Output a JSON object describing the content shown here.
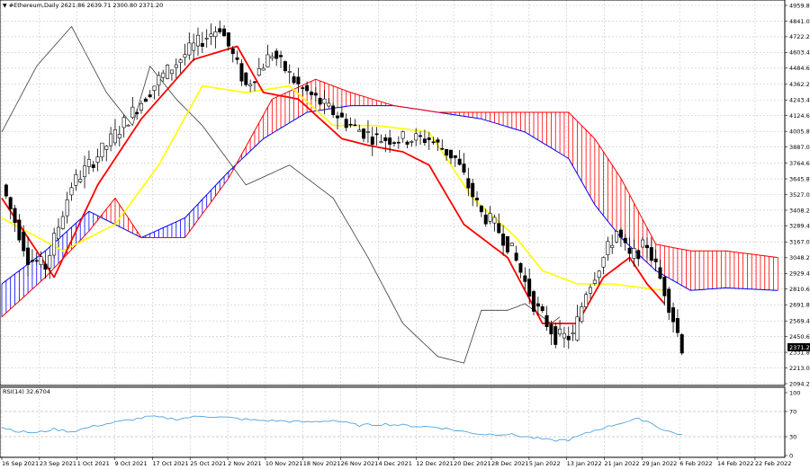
{
  "header": {
    "symbol_label": "#Ethereum,Daily",
    "ohlc_label": "2621.86 2639.71 2300.80 2371.20"
  },
  "rsi_panel": {
    "label": "RSI(14) 32.6704"
  },
  "current_price": "2371.20",
  "colors": {
    "background": "#ffffff",
    "grid": "#c8c8c8",
    "candle": "#000000",
    "tenkan": "#ff0000",
    "kijun": "#ffff00",
    "chikou": "#3c3c3c",
    "kumo_bull": "#0000ff",
    "kumo_bear": "#ff0000",
    "rsi_line": "#4fa3e0",
    "price_badge": "#000000"
  },
  "chart_data": [
    {
      "type": "candlestick",
      "title": "#Ethereum,Daily",
      "indicators": [
        "Ichimoku Kinko Hyo"
      ],
      "y_ticks": [
        "4959.80",
        "4841.00",
        "4722.20",
        "4603.40",
        "4484.60",
        "4362.20",
        "4243.40",
        "4124.60",
        "4005.80",
        "3887.00",
        "3764.60",
        "3645.80",
        "3527.00",
        "3408.20",
        "3289.40",
        "3167.00",
        "3048.20",
        "2929.40",
        "2810.60",
        "2691.80",
        "2569.40",
        "2450.60",
        "2331.80",
        "2213.00",
        "2094.20"
      ],
      "ylim": [
        2094.2,
        4959.8
      ],
      "x_ticks": [
        "16 Sep 2021",
        "23 Sep 2021",
        "1 Oct 2021",
        "9 Oct 2021",
        "17 Oct 2021",
        "25 Oct 2021",
        "2 Nov 2021",
        "10 Nov 2021",
        "18 Nov 2021",
        "26 Nov 2021",
        "4 Dec 2021",
        "12 Dec 2021",
        "20 Dec 2021",
        "28 Dec 2021",
        "5 Jan 2022",
        "13 Jan 2022",
        "21 Jan 2022",
        "29 Jan 2022",
        "6 Feb 2022",
        "14 Feb 2022",
        "22 Feb 2022"
      ],
      "last_close": 2371.2,
      "price_key": [
        [
          0,
          3600
        ],
        [
          6,
          3050
        ],
        [
          10,
          2980
        ],
        [
          16,
          3600
        ],
        [
          24,
          3900
        ],
        [
          30,
          4150
        ],
        [
          36,
          4400
        ],
        [
          44,
          4650
        ],
        [
          50,
          4800
        ],
        [
          56,
          4350
        ],
        [
          62,
          4600
        ],
        [
          68,
          4350
        ],
        [
          74,
          4200
        ],
        [
          80,
          4050
        ],
        [
          86,
          3950
        ],
        [
          92,
          3950
        ],
        [
          98,
          3950
        ],
        [
          104,
          3800
        ],
        [
          110,
          3380
        ],
        [
          113,
          3300
        ],
        [
          117,
          3100
        ],
        [
          122,
          2700
        ],
        [
          127,
          2450
        ],
        [
          131,
          2450
        ],
        [
          134,
          2800
        ],
        [
          138,
          3050
        ],
        [
          141,
          3250
        ],
        [
          144,
          3050
        ],
        [
          148,
          3150
        ],
        [
          152,
          2800
        ],
        [
          156,
          2371
        ]
      ],
      "series": [
        {
          "key_points": [
            [
              0,
              3500
            ],
            [
              12,
              2900
            ],
            [
              22,
              3600
            ],
            [
              32,
              4100
            ],
            [
              44,
              4550
            ],
            [
              54,
              4650
            ],
            [
              60,
              4300
            ],
            [
              68,
              4250
            ],
            [
              78,
              3950
            ],
            [
              84,
              3900
            ],
            [
              92,
              3850
            ],
            [
              98,
              3750
            ],
            [
              106,
              3300
            ],
            [
              116,
              3050
            ],
            [
              124,
              2550
            ],
            [
              132,
              2550
            ],
            [
              138,
              2900
            ],
            [
              144,
              3050
            ],
            [
              148,
              2850
            ],
            [
              152,
              2700
            ]
          ]
        },
        {
          "key_points": [
            [
              0,
              3350
            ],
            [
              14,
              3100
            ],
            [
              26,
              3300
            ],
            [
              36,
              3750
            ],
            [
              46,
              4350
            ],
            [
              56,
              4300
            ],
            [
              66,
              4350
            ],
            [
              76,
              4050
            ],
            [
              86,
              4050
            ],
            [
              98,
              4000
            ],
            [
              108,
              3500
            ],
            [
              118,
              3200
            ],
            [
              124,
              2950
            ],
            [
              132,
              2850
            ],
            [
              140,
              2850
            ],
            [
              152,
              2800
            ]
          ]
        },
        {
          "key_points": [
            [
              0,
              4000
            ],
            [
              8,
              4500
            ],
            [
              16,
              4800
            ],
            [
              24,
              4300
            ],
            [
              30,
              4050
            ],
            [
              34,
              4500
            ],
            [
              40,
              4250
            ],
            [
              46,
              4050
            ],
            [
              56,
              3600
            ],
            [
              66,
              3750
            ],
            [
              76,
              3500
            ],
            [
              84,
              3050
            ],
            [
              92,
              2550
            ],
            [
              100,
              2300
            ],
            [
              106,
              2250
            ],
            [
              110,
              2650
            ],
            [
              116,
              2650
            ],
            [
              120,
              2700
            ],
            [
              126,
              2550
            ],
            [
              128,
              2600
            ]
          ]
        },
        {
          "key_points": [
            [
              0,
              2850
            ],
            [
              10,
              3100
            ],
            [
              20,
              3400
            ],
            [
              32,
              3200
            ],
            [
              42,
              3350
            ],
            [
              52,
              3700
            ],
            [
              60,
              3950
            ],
            [
              70,
              4150
            ],
            [
              80,
              4200
            ],
            [
              90,
              4200
            ],
            [
              100,
              4150
            ],
            [
              110,
              4100
            ],
            [
              120,
              4000
            ],
            [
              130,
              3800
            ],
            [
              136,
              3450
            ],
            [
              142,
              3200
            ],
            [
              150,
              2950
            ],
            [
              158,
              2800
            ],
            [
              166,
              2820
            ],
            [
              178,
              2800
            ]
          ]
        },
        {
          "key_points": [
            [
              0,
              2600
            ],
            [
              10,
              2900
            ],
            [
              20,
              3250
            ],
            [
              26,
              3500
            ],
            [
              32,
              3200
            ],
            [
              42,
              3200
            ],
            [
              52,
              3650
            ],
            [
              62,
              4250
            ],
            [
              72,
              4400
            ],
            [
              80,
              4300
            ],
            [
              90,
              4200
            ],
            [
              100,
              4150
            ],
            [
              110,
              4150
            ],
            [
              120,
              4150
            ],
            [
              130,
              4150
            ],
            [
              136,
              3950
            ],
            [
              142,
              3650
            ],
            [
              150,
              3150
            ],
            [
              158,
              3100
            ],
            [
              166,
              3100
            ],
            [
              178,
              3050
            ]
          ]
        }
      ]
    },
    {
      "type": "line",
      "title": "RSI(14) 32.6704",
      "y_ticks": [
        "100",
        "70",
        "30",
        "0"
      ],
      "ylim": [
        0,
        100
      ],
      "series": [
        {
          "key_points": [
            [
              0,
              45
            ],
            [
              4,
              38
            ],
            [
              8,
              36
            ],
            [
              12,
              42
            ],
            [
              16,
              38
            ],
            [
              22,
              48
            ],
            [
              28,
              55
            ],
            [
              34,
              62
            ],
            [
              40,
              58
            ],
            [
              46,
              63
            ],
            [
              52,
              60
            ],
            [
              58,
              56
            ],
            [
              64,
              55
            ],
            [
              70,
              53
            ],
            [
              76,
              56
            ],
            [
              82,
              48
            ],
            [
              88,
              50
            ],
            [
              94,
              47
            ],
            [
              100,
              45
            ],
            [
              106,
              38
            ],
            [
              110,
              34
            ],
            [
              116,
              34
            ],
            [
              120,
              30
            ],
            [
              126,
              24
            ],
            [
              130,
              25
            ],
            [
              136,
              40
            ],
            [
              142,
              52
            ],
            [
              146,
              58
            ],
            [
              148,
              55
            ],
            [
              152,
              40
            ],
            [
              156,
              33
            ]
          ]
        }
      ]
    }
  ]
}
